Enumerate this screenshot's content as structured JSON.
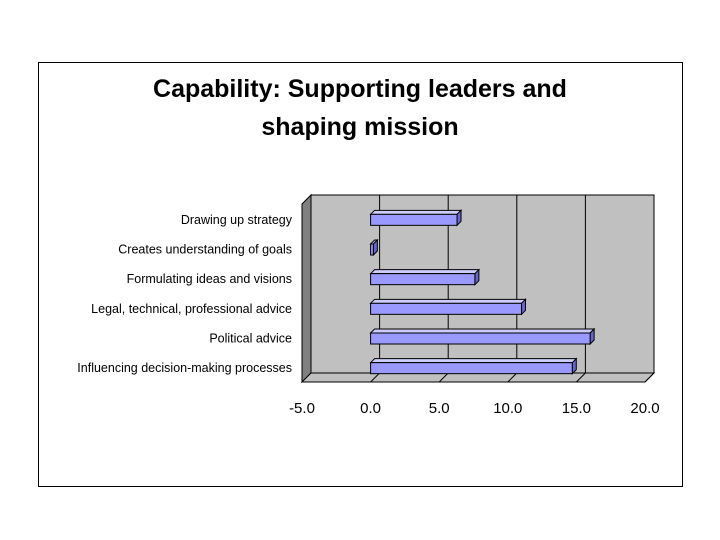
{
  "chart_data": {
    "type": "bar",
    "orientation": "horizontal",
    "title": "Capability:  Supporting leaders and",
    "title_line2": "shaping mission",
    "categories": [
      "Drawing up strategy",
      "Creates understanding of goals",
      "Formulating ideas and visions",
      "Legal, technical, professional advice",
      "Political advice",
      "Influencing decision-making processes"
    ],
    "values": [
      6.3,
      0.2,
      7.6,
      11.0,
      16.0,
      14.7
    ],
    "xlim": [
      -5.0,
      20.0
    ],
    "xticks": [
      "-5.0",
      "0.0",
      "5.0",
      "10.0",
      "15.0",
      "20.0"
    ],
    "grid": true,
    "legend": "none",
    "colors": {
      "bar": "#9999ff",
      "plot_back": "#c0c0c0",
      "wall_side": "#808080"
    }
  }
}
